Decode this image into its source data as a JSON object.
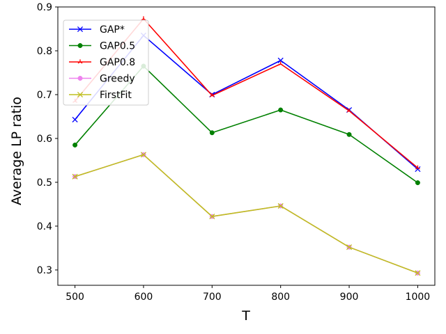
{
  "chart_data": {
    "type": "line",
    "title": "",
    "xlabel": "T",
    "ylabel": "Average LP ratio",
    "x": [
      500,
      600,
      700,
      800,
      900,
      1000
    ],
    "xlim": [
      475,
      1025
    ],
    "ylim": [
      0.265,
      0.9
    ],
    "xticks": [
      500,
      600,
      700,
      800,
      900,
      1000
    ],
    "yticks": [
      0.3,
      0.4,
      0.5,
      0.6,
      0.7,
      0.8,
      0.9
    ],
    "ytick_labels": [
      "0.3",
      "0.4",
      "0.5",
      "0.6",
      "0.7",
      "0.8",
      "0.9"
    ],
    "legend_position": "top-left",
    "grid": false,
    "series": [
      {
        "name": "GAP*",
        "color": "#0000ff",
        "marker": "x",
        "values": [
          0.643,
          0.835,
          0.7,
          0.778,
          0.665,
          0.53
        ]
      },
      {
        "name": "GAP0.5",
        "color": "#008000",
        "marker": "circle",
        "values": [
          0.585,
          0.765,
          0.613,
          0.665,
          0.609,
          0.499
        ]
      },
      {
        "name": "GAP0.8",
        "color": "#ff0000",
        "marker": "tri",
        "values": [
          0.685,
          0.873,
          0.698,
          0.77,
          0.663,
          0.533
        ]
      },
      {
        "name": "Greedy",
        "color": "#ee82ee",
        "marker": "circle",
        "values": [
          0.513,
          0.563,
          0.422,
          0.446,
          0.352,
          0.293
        ]
      },
      {
        "name": "FirstFit",
        "color": "#bfbf1f",
        "marker": "x",
        "values": [
          0.513,
          0.563,
          0.422,
          0.446,
          0.352,
          0.293
        ]
      }
    ]
  }
}
